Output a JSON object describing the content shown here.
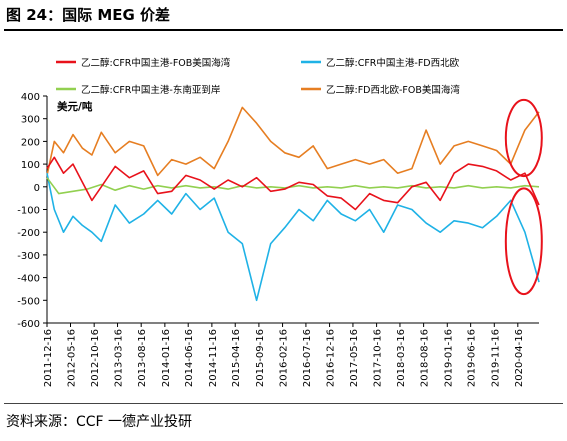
{
  "figure": {
    "title": "图 24：国际 MEG 价差",
    "source": "资料来源：CCF 一德产业投研"
  },
  "chart_data": {
    "type": "line",
    "ylabel": "美元/吨",
    "ylim": [
      -600,
      400
    ],
    "yticks": [
      400,
      300,
      200,
      100,
      0,
      -100,
      -200,
      -300,
      -400,
      -500,
      -600
    ],
    "xlim": [
      "2011-12-16",
      "2020-08-31"
    ],
    "xticks": [
      "2011-12-16",
      "2012-05-16",
      "2012-10-16",
      "2013-03-16",
      "2013-08-16",
      "2014-01-16",
      "2014-06-16",
      "2014-11-16",
      "2015-04-16",
      "2015-09-16",
      "2016-02-16",
      "2016-07-16",
      "2016-12-16",
      "2017-05-16",
      "2017-10-16",
      "2018-03-16",
      "2018-08-16",
      "2019-01-16",
      "2019-06-16",
      "2019-11-16",
      "2020-04-16"
    ],
    "grid": false,
    "legend_position": "top",
    "series": [
      {
        "name": "乙二醇:CFR中国主港-FOB美国海湾",
        "color": "#e8121b",
        "points": [
          [
            "2011-12-16",
            80
          ],
          [
            "2012-02-01",
            130
          ],
          [
            "2012-04-01",
            60
          ],
          [
            "2012-06-01",
            100
          ],
          [
            "2012-08-01",
            20
          ],
          [
            "2012-10-01",
            -60
          ],
          [
            "2012-12-01",
            0
          ],
          [
            "2013-03-01",
            90
          ],
          [
            "2013-06-01",
            40
          ],
          [
            "2013-09-01",
            70
          ],
          [
            "2013-12-01",
            -30
          ],
          [
            "2014-03-01",
            -20
          ],
          [
            "2014-06-01",
            50
          ],
          [
            "2014-09-01",
            30
          ],
          [
            "2014-12-01",
            -10
          ],
          [
            "2015-03-01",
            30
          ],
          [
            "2015-06-01",
            0
          ],
          [
            "2015-09-01",
            40
          ],
          [
            "2015-12-01",
            -20
          ],
          [
            "2016-03-01",
            -10
          ],
          [
            "2016-06-01",
            20
          ],
          [
            "2016-09-01",
            10
          ],
          [
            "2016-12-01",
            -40
          ],
          [
            "2017-03-01",
            -50
          ],
          [
            "2017-06-01",
            -100
          ],
          [
            "2017-09-01",
            -30
          ],
          [
            "2017-12-01",
            -60
          ],
          [
            "2018-03-01",
            -70
          ],
          [
            "2018-06-01",
            0
          ],
          [
            "2018-09-01",
            20
          ],
          [
            "2018-12-01",
            -60
          ],
          [
            "2019-03-01",
            60
          ],
          [
            "2019-06-01",
            100
          ],
          [
            "2019-09-01",
            90
          ],
          [
            "2019-12-01",
            70
          ],
          [
            "2020-03-01",
            30
          ],
          [
            "2020-06-01",
            60
          ],
          [
            "2020-08-31",
            -80
          ]
        ]
      },
      {
        "name": "乙二醇:CFR中国主港-FD西北欧",
        "color": "#1fb2e6",
        "points": [
          [
            "2011-12-16",
            60
          ],
          [
            "2012-02-01",
            -100
          ],
          [
            "2012-04-01",
            -200
          ],
          [
            "2012-06-01",
            -130
          ],
          [
            "2012-08-01",
            -170
          ],
          [
            "2012-10-01",
            -200
          ],
          [
            "2012-12-01",
            -240
          ],
          [
            "2013-03-01",
            -80
          ],
          [
            "2013-06-01",
            -160
          ],
          [
            "2013-09-01",
            -120
          ],
          [
            "2013-12-01",
            -60
          ],
          [
            "2014-03-01",
            -120
          ],
          [
            "2014-06-01",
            -30
          ],
          [
            "2014-09-01",
            -100
          ],
          [
            "2014-12-01",
            -50
          ],
          [
            "2015-03-01",
            -200
          ],
          [
            "2015-06-01",
            -250
          ],
          [
            "2015-09-01",
            -500
          ],
          [
            "2015-12-01",
            -250
          ],
          [
            "2016-03-01",
            -180
          ],
          [
            "2016-06-01",
            -100
          ],
          [
            "2016-09-01",
            -150
          ],
          [
            "2016-12-01",
            -60
          ],
          [
            "2017-03-01",
            -120
          ],
          [
            "2017-06-01",
            -150
          ],
          [
            "2017-09-01",
            -100
          ],
          [
            "2017-12-01",
            -200
          ],
          [
            "2018-03-01",
            -80
          ],
          [
            "2018-06-01",
            -100
          ],
          [
            "2018-09-01",
            -160
          ],
          [
            "2018-12-01",
            -200
          ],
          [
            "2019-03-01",
            -150
          ],
          [
            "2019-06-01",
            -160
          ],
          [
            "2019-09-01",
            -180
          ],
          [
            "2019-12-01",
            -130
          ],
          [
            "2020-03-01",
            -60
          ],
          [
            "2020-06-01",
            -200
          ],
          [
            "2020-08-31",
            -420
          ]
        ]
      },
      {
        "name": "乙二醇:CFR中国主港-东南亚到岸",
        "color": "#92d050",
        "points": [
          [
            "2011-12-16",
            40
          ],
          [
            "2012-03-01",
            -30
          ],
          [
            "2012-06-01",
            -20
          ],
          [
            "2012-09-01",
            -10
          ],
          [
            "2012-12-01",
            10
          ],
          [
            "2013-03-01",
            -15
          ],
          [
            "2013-06-01",
            5
          ],
          [
            "2013-09-01",
            -10
          ],
          [
            "2013-12-01",
            5
          ],
          [
            "2014-03-01",
            -5
          ],
          [
            "2014-06-01",
            5
          ],
          [
            "2014-09-01",
            -5
          ],
          [
            "2014-12-01",
            0
          ],
          [
            "2015-03-01",
            -10
          ],
          [
            "2015-06-01",
            5
          ],
          [
            "2015-09-01",
            -5
          ],
          [
            "2015-12-01",
            0
          ],
          [
            "2016-03-01",
            -5
          ],
          [
            "2016-06-01",
            5
          ],
          [
            "2016-09-01",
            -5
          ],
          [
            "2016-12-01",
            0
          ],
          [
            "2017-03-01",
            -5
          ],
          [
            "2017-06-01",
            5
          ],
          [
            "2017-09-01",
            -5
          ],
          [
            "2017-12-01",
            0
          ],
          [
            "2018-03-01",
            -5
          ],
          [
            "2018-06-01",
            5
          ],
          [
            "2018-09-01",
            -5
          ],
          [
            "2018-12-01",
            0
          ],
          [
            "2019-03-01",
            -5
          ],
          [
            "2019-06-01",
            5
          ],
          [
            "2019-09-01",
            -5
          ],
          [
            "2019-12-01",
            0
          ],
          [
            "2020-03-01",
            -5
          ],
          [
            "2020-06-01",
            5
          ],
          [
            "2020-08-31",
            0
          ]
        ]
      },
      {
        "name": "乙二醇:FD西北欧-FOB美国海湾",
        "color": "#e67e22",
        "points": [
          [
            "2011-12-16",
            50
          ],
          [
            "2012-02-01",
            200
          ],
          [
            "2012-04-01",
            150
          ],
          [
            "2012-06-01",
            230
          ],
          [
            "2012-08-01",
            170
          ],
          [
            "2012-10-01",
            140
          ],
          [
            "2012-12-01",
            240
          ],
          [
            "2013-03-01",
            150
          ],
          [
            "2013-06-01",
            200
          ],
          [
            "2013-09-01",
            180
          ],
          [
            "2013-12-01",
            50
          ],
          [
            "2014-03-01",
            120
          ],
          [
            "2014-06-01",
            100
          ],
          [
            "2014-09-01",
            130
          ],
          [
            "2014-12-01",
            80
          ],
          [
            "2015-03-01",
            200
          ],
          [
            "2015-06-01",
            350
          ],
          [
            "2015-09-01",
            280
          ],
          [
            "2015-12-01",
            200
          ],
          [
            "2016-03-01",
            150
          ],
          [
            "2016-06-01",
            130
          ],
          [
            "2016-09-01",
            180
          ],
          [
            "2016-12-01",
            80
          ],
          [
            "2017-03-01",
            100
          ],
          [
            "2017-06-01",
            120
          ],
          [
            "2017-09-01",
            100
          ],
          [
            "2017-12-01",
            120
          ],
          [
            "2018-03-01",
            60
          ],
          [
            "2018-06-01",
            80
          ],
          [
            "2018-09-01",
            250
          ],
          [
            "2018-12-01",
            100
          ],
          [
            "2019-03-01",
            180
          ],
          [
            "2019-06-01",
            200
          ],
          [
            "2019-09-01",
            180
          ],
          [
            "2019-12-01",
            160
          ],
          [
            "2020-03-01",
            100
          ],
          [
            "2020-06-01",
            250
          ],
          [
            "2020-08-31",
            330
          ]
        ]
      }
    ],
    "annotations": [
      {
        "shape": "ellipse",
        "color": "#e8121b",
        "target": "乙二醇:FD西北欧-FOB美国海湾",
        "period": [
          "2020-05-01",
          "2020-08-31"
        ]
      },
      {
        "shape": "ellipse",
        "color": "#e8121b",
        "target": "乙二醇:CFR中国主港-FD西北欧",
        "period": [
          "2020-05-01",
          "2020-08-31"
        ]
      }
    ]
  }
}
